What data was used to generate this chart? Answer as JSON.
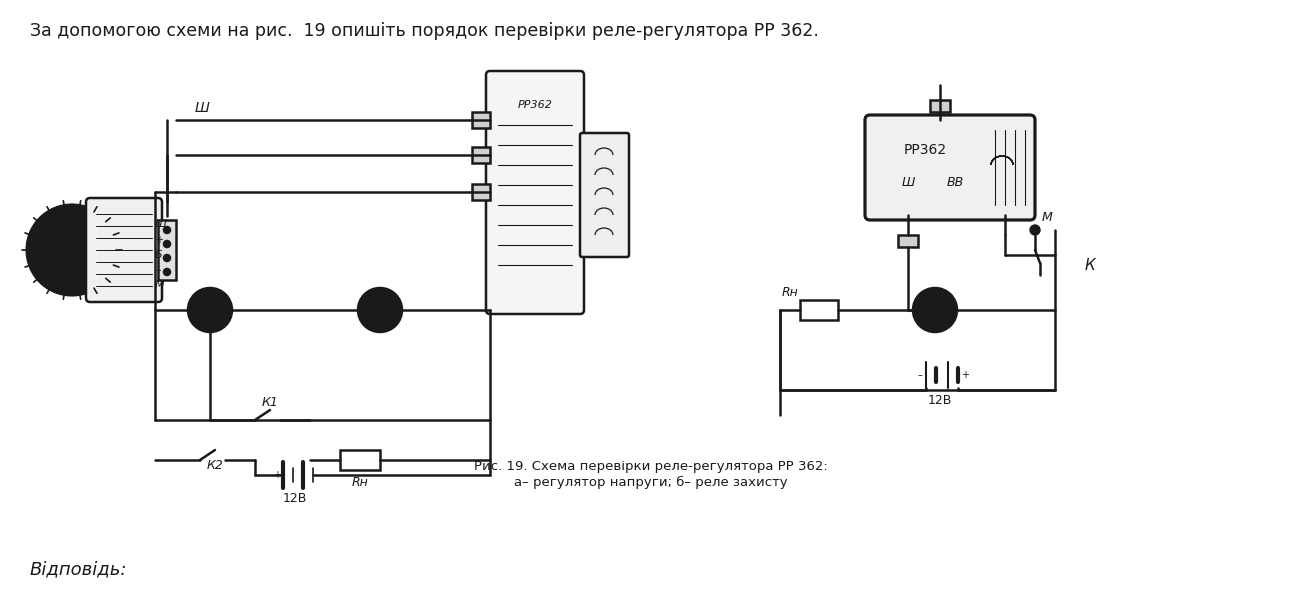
{
  "background_color": "#ffffff",
  "title_text": "За допомогою схеми на рис.  19 опишіть порядок перевірки реле-регулятора РР 362.",
  "title_fontsize": 12.5,
  "caption_line1": "Рис. 19. Схема перевірки реле-регулятора РР 362:",
  "caption_line2": "а– регулятор напруги; б– реле захисту",
  "caption_fontsize": 9.5,
  "footer_text": "Відповідь:",
  "footer_fontsize": 13,
  "image_color": "#1a1a1a",
  "lw": 1.8
}
